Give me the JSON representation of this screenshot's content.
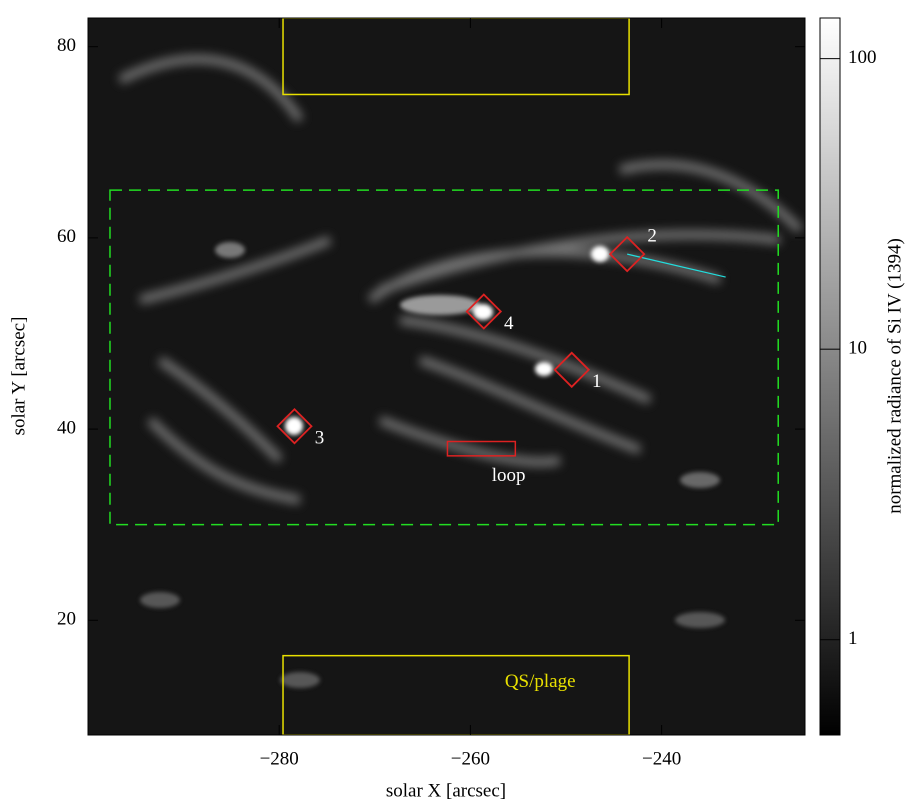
{
  "chart_data": {
    "type": "image",
    "xlabel": "solar  X  [arcsec]",
    "ylabel": "solar  Y  [arcsec]",
    "xlim": [
      -300,
      -225
    ],
    "ylim": [
      8,
      83
    ],
    "xticks": [
      {
        "value": -280,
        "label": "−280"
      },
      {
        "value": -260,
        "label": "−260"
      },
      {
        "value": -240,
        "label": "−240"
      }
    ],
    "yticks": [
      20,
      40,
      60,
      80
    ],
    "colorbar": {
      "label": "normalized radiance of Si IV (1394)",
      "log_scale": true,
      "lim": [
        0.47,
        138
      ],
      "ticks": [
        1,
        10,
        100
      ]
    },
    "regions": [
      {
        "x0": -297.7,
        "x1": -227.8,
        "y0": 30,
        "y1": 65,
        "color": "#22dd22",
        "dashed": true
      },
      {
        "x0": -279.6,
        "x1": -243.4,
        "y0": 75,
        "y1": 83,
        "color": "#e8e000",
        "dashed": false
      },
      {
        "x0": -279.6,
        "x1": -243.4,
        "y0": 8,
        "y1": 16.3,
        "color": "#e8e000",
        "dashed": false
      },
      {
        "x0": -262.4,
        "x1": -255.3,
        "y0": 37.2,
        "y1": 38.7,
        "color": "#dd2222",
        "dashed": false
      }
    ],
    "markers": [
      {
        "label": "1",
        "x": -249.4,
        "y": 46.2,
        "color": "#dd2222"
      },
      {
        "label": "2",
        "x": -243.6,
        "y": 58.3,
        "color": "#dd2222"
      },
      {
        "label": "3",
        "x": -278.4,
        "y": 40.3,
        "color": "#dd2222"
      },
      {
        "label": "4",
        "x": -258.6,
        "y": 52.3,
        "color": "#dd2222"
      }
    ],
    "line": {
      "x": [
        -243.6,
        -233.3
      ],
      "y": [
        58.3,
        55.9
      ],
      "color": "#22dddd"
    },
    "annotations": [
      {
        "text": "loop",
        "x": -256,
        "y": 35,
        "color": "#ffffff"
      },
      {
        "text": "QS/plage",
        "x": -252.7,
        "y": 13.5,
        "color": "#e8e000"
      }
    ]
  }
}
